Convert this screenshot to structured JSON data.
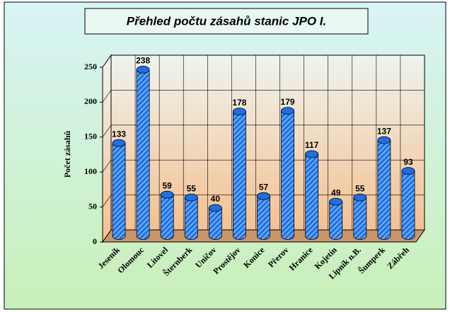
{
  "chart_data": {
    "type": "bar",
    "title": "Přehled počtu zásahů  stanic JPO I.",
    "y_label": "Počet zásahů",
    "categories": [
      "Jeseník",
      "Olomouc",
      "Litovel",
      "Šternberk",
      "Uničov",
      "Prostějov",
      "Konice",
      "Přerov",
      "Hranice",
      "Kojetín",
      "Lipník n.B.",
      "Šumperk",
      "Zábřeh"
    ],
    "values": [
      133,
      238,
      59,
      55,
      40,
      178,
      57,
      179,
      117,
      49,
      55,
      137,
      93
    ],
    "color": "#1f6fe0",
    "ylim": [
      0,
      250
    ],
    "yticks": [
      0,
      50,
      100,
      150,
      200,
      250
    ],
    "grid": true
  }
}
